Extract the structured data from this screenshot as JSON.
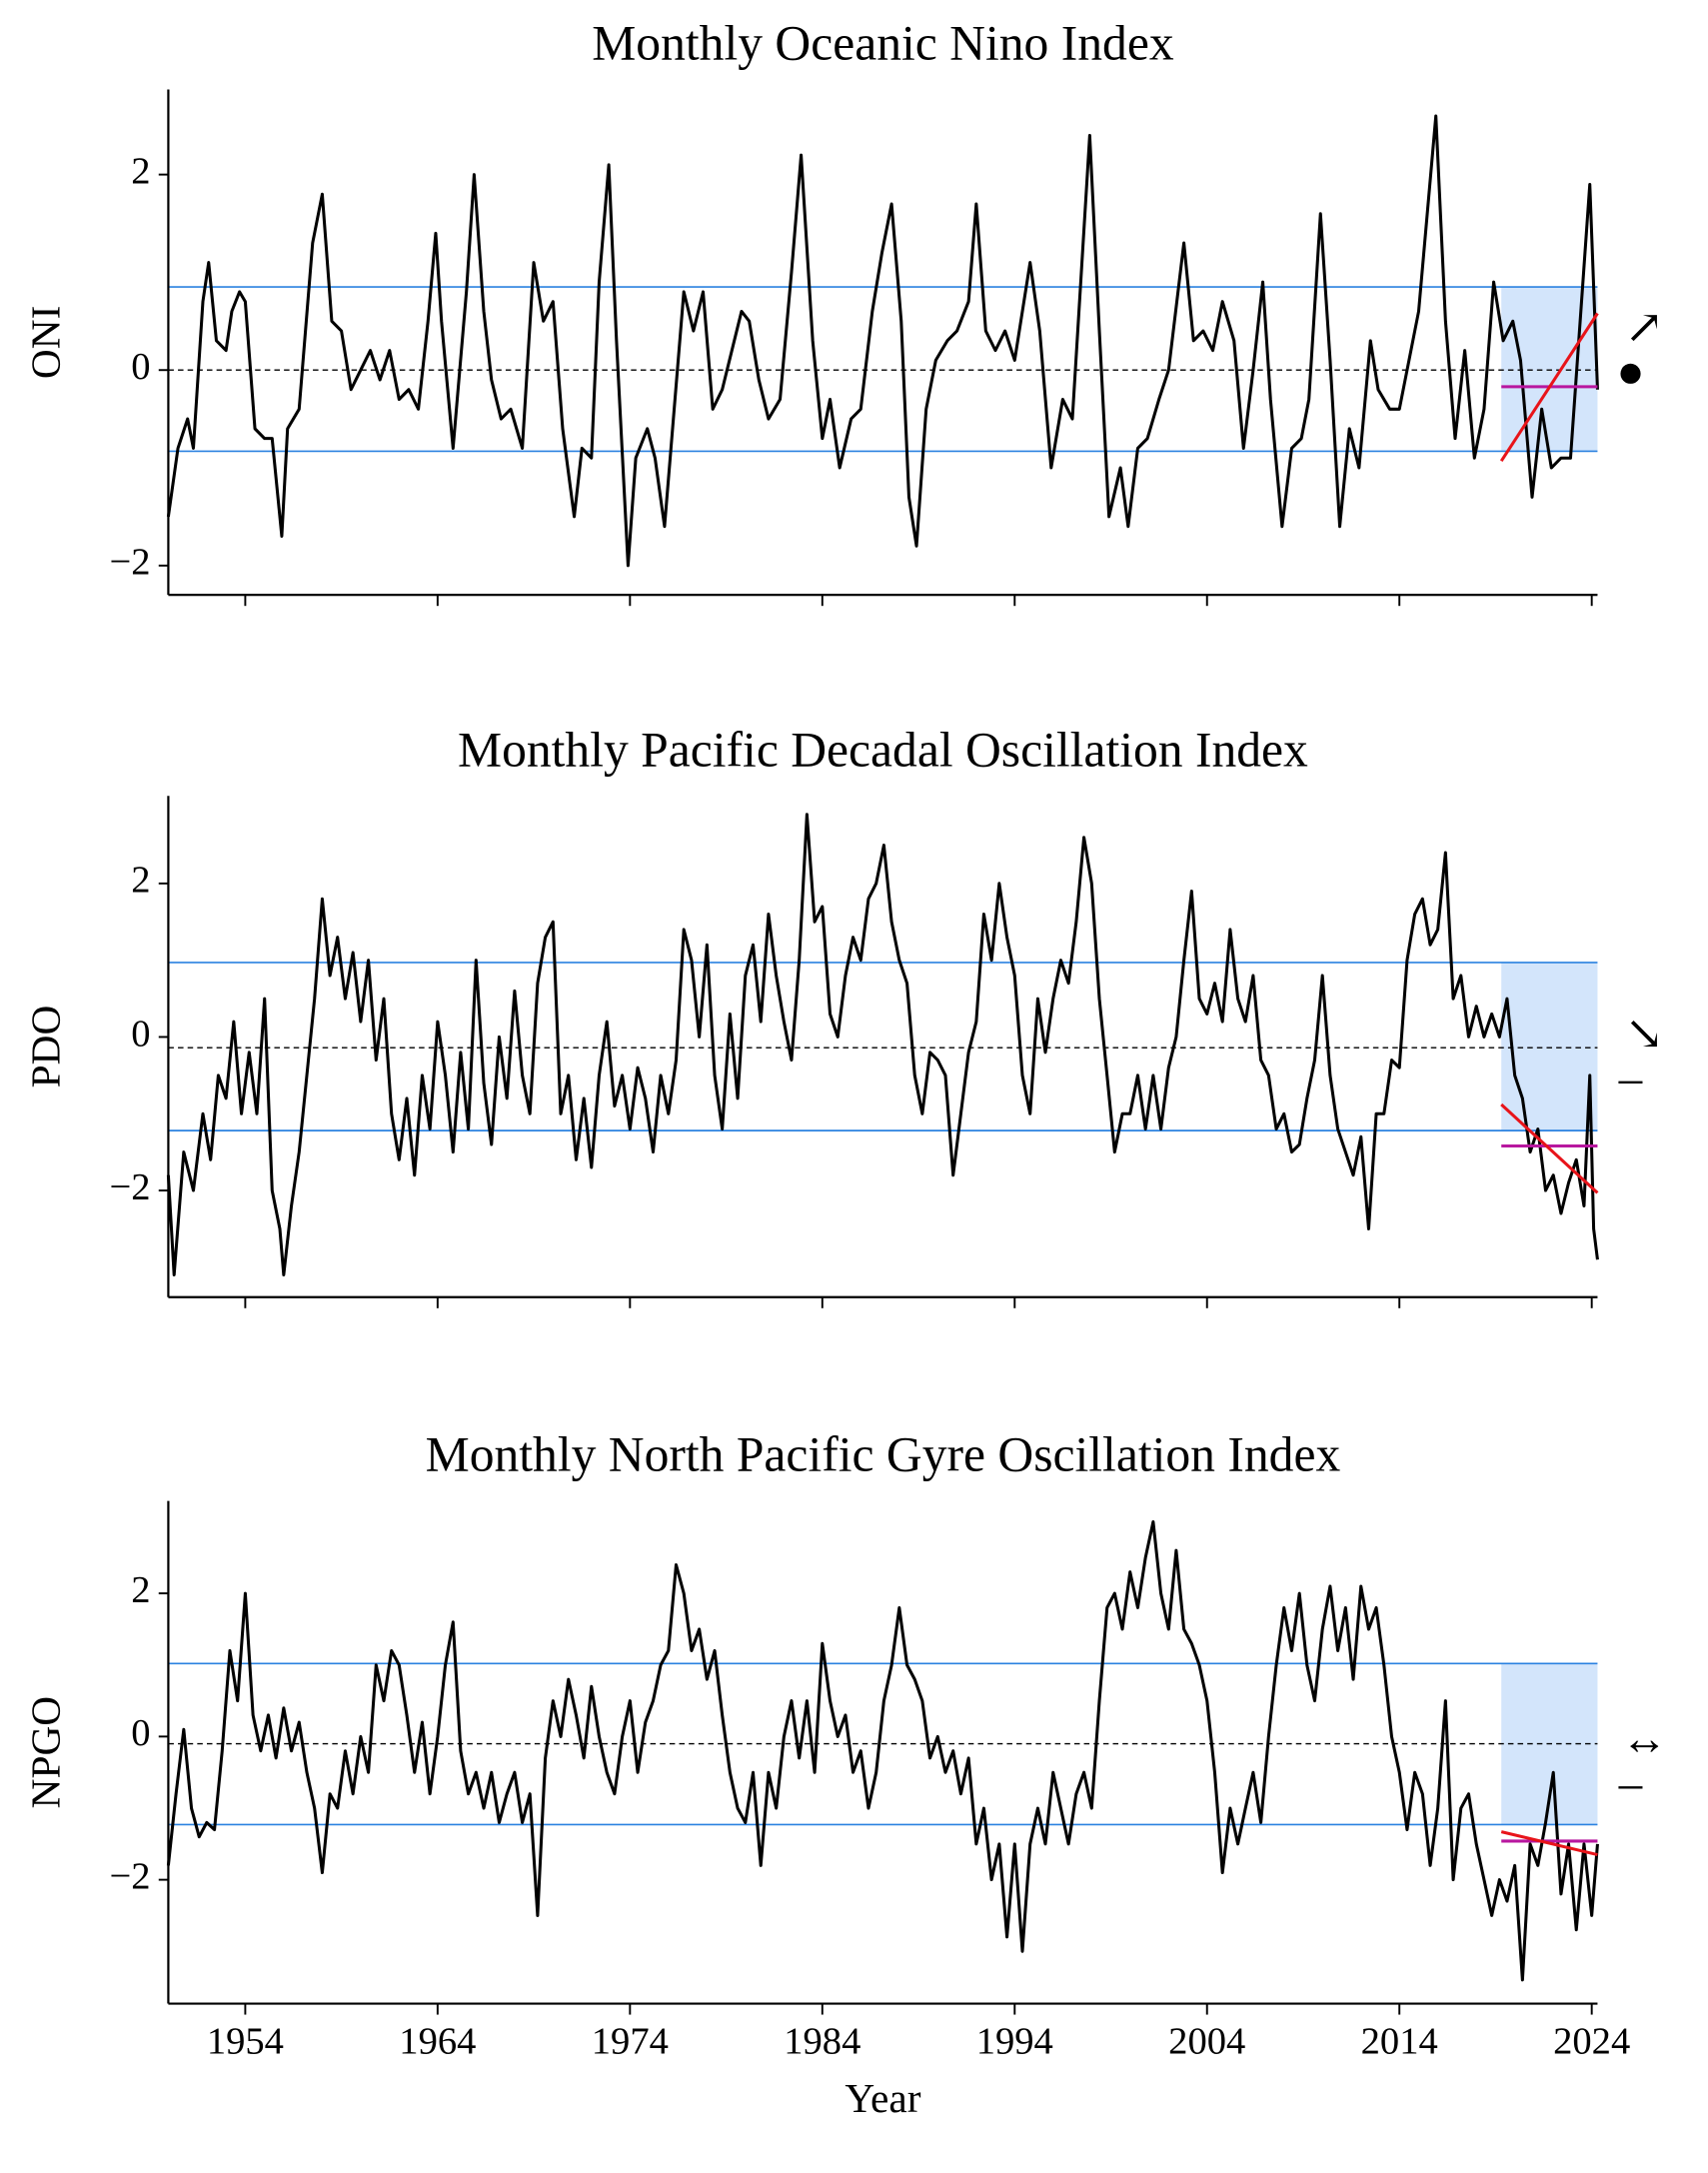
{
  "chart_data": [
    {
      "type": "line",
      "title": "Monthly Oceanic Nino Index",
      "ylabel": "ONI",
      "color": "#000000",
      "x": [
        1950.0,
        1950.5,
        1951.0,
        1951.3,
        1951.8,
        1952.1,
        1952.5,
        1953.0,
        1953.3,
        1953.7,
        1954.0,
        1954.5,
        1955.0,
        1955.4,
        1955.9,
        1956.2,
        1956.8,
        1957.5,
        1958.0,
        1958.5,
        1959.0,
        1959.5,
        1960.0,
        1960.5,
        1961.0,
        1961.5,
        1962.0,
        1962.5,
        1963.0,
        1963.5,
        1963.9,
        1964.2,
        1964.8,
        1965.5,
        1965.9,
        1966.4,
        1966.8,
        1967.3,
        1967.8,
        1968.4,
        1969.0,
        1969.5,
        1970.0,
        1970.5,
        1971.1,
        1971.5,
        1972.0,
        1972.4,
        1972.9,
        1973.3,
        1973.9,
        1974.3,
        1974.9,
        1975.3,
        1975.8,
        1976.3,
        1976.8,
        1977.3,
        1977.8,
        1978.3,
        1978.8,
        1979.3,
        1979.8,
        1980.2,
        1980.7,
        1981.2,
        1981.8,
        1982.4,
        1982.9,
        1983.5,
        1984.0,
        1984.4,
        1984.9,
        1985.5,
        1986.0,
        1986.6,
        1987.1,
        1987.6,
        1988.1,
        1988.5,
        1988.9,
        1989.4,
        1989.9,
        1990.5,
        1991.0,
        1991.6,
        1992.0,
        1992.5,
        1993.0,
        1993.5,
        1994.0,
        1994.8,
        1995.3,
        1995.9,
        1996.5,
        1997.0,
        1997.9,
        1998.4,
        1998.9,
        1999.5,
        1999.9,
        2000.4,
        2000.9,
        2001.5,
        2002.0,
        2002.8,
        2003.3,
        2003.8,
        2004.3,
        2004.8,
        2005.4,
        2005.9,
        2006.4,
        2006.9,
        2007.3,
        2007.9,
        2008.4,
        2008.9,
        2009.3,
        2009.9,
        2010.4,
        2010.9,
        2011.4,
        2011.9,
        2012.5,
        2012.9,
        2013.5,
        2014.0,
        2014.5,
        2015.0,
        2015.9,
        2016.4,
        2016.9,
        2017.4,
        2017.9,
        2018.4,
        2018.9,
        2019.4,
        2019.9,
        2020.3,
        2020.9,
        2021.4,
        2021.9,
        2022.4,
        2022.9,
        2023.4,
        2023.9,
        2024.3
      ],
      "values": [
        -1.5,
        -0.8,
        -0.5,
        -0.8,
        0.7,
        1.1,
        0.3,
        0.2,
        0.6,
        0.8,
        0.7,
        -0.6,
        -0.7,
        -0.7,
        -1.7,
        -0.6,
        -0.4,
        1.3,
        1.8,
        0.5,
        0.4,
        -0.2,
        0.0,
        0.2,
        -0.1,
        0.2,
        -0.3,
        -0.2,
        -0.4,
        0.5,
        1.4,
        0.5,
        -0.8,
        0.8,
        2.0,
        0.6,
        -0.1,
        -0.5,
        -0.4,
        -0.8,
        1.1,
        0.5,
        0.7,
        -0.6,
        -1.5,
        -0.8,
        -0.9,
        0.9,
        2.1,
        0.3,
        -2.0,
        -0.9,
        -0.6,
        -0.9,
        -1.6,
        -0.4,
        0.8,
        0.4,
        0.8,
        -0.4,
        -0.2,
        0.2,
        0.6,
        0.5,
        -0.1,
        -0.5,
        -0.3,
        1.0,
        2.2,
        0.3,
        -0.7,
        -0.3,
        -1.0,
        -0.5,
        -0.4,
        0.6,
        1.2,
        1.7,
        0.5,
        -1.3,
        -1.8,
        -0.4,
        0.1,
        0.3,
        0.4,
        0.7,
        1.7,
        0.4,
        0.2,
        0.4,
        0.1,
        1.1,
        0.4,
        -1.0,
        -0.3,
        -0.5,
        2.4,
        0.4,
        -1.5,
        -1.0,
        -1.6,
        -0.8,
        -0.7,
        -0.3,
        0.0,
        1.3,
        0.3,
        0.4,
        0.2,
        0.7,
        0.3,
        -0.8,
        0.0,
        0.9,
        -0.3,
        -1.6,
        -0.8,
        -0.7,
        -0.3,
        1.6,
        0.1,
        -1.6,
        -0.6,
        -1.0,
        0.3,
        -0.2,
        -0.4,
        -0.4,
        0.1,
        0.6,
        2.6,
        0.5,
        -0.7,
        0.2,
        -0.9,
        -0.4,
        0.9,
        0.3,
        0.5,
        0.1,
        -1.3,
        -0.4,
        -1.0,
        -0.9,
        -0.9,
        0.5,
        1.9,
        -0.2
      ],
      "xlim": [
        1950,
        2024.3
      ],
      "xticks": [
        1954,
        1964,
        1974,
        1984,
        1994,
        2004,
        2014,
        2024
      ],
      "show_xticklabels": false,
      "ylim": [
        -2.3,
        2.87
      ],
      "yticks": [
        {
          "value": -2,
          "label": "−2"
        },
        0,
        2
      ],
      "thresholds": [
        0.85,
        -0.83
      ],
      "mean": 0.0,
      "recent_window": [
        2019.3,
        2024.3
      ],
      "trend": {
        "x": [
          2019.3,
          2024.3
        ],
        "y": [
          -0.93,
          0.58
        ]
      },
      "recent_mean": -0.17,
      "trend_symbol": "↗",
      "state_symbol": "●",
      "threshold_color": "#2b82e0",
      "shade_color": "#d3e5fb",
      "trend_color": "#e8141a",
      "recent_mean_color": "#b8179f"
    },
    {
      "type": "line",
      "title": "Monthly Pacific Decadal Oscillation Index",
      "ylabel": "PDO",
      "color": "#000000",
      "x": [
        1950.0,
        1950.3,
        1950.8,
        1951.3,
        1951.8,
        1952.2,
        1952.6,
        1953.0,
        1953.4,
        1953.8,
        1954.2,
        1954.6,
        1955.0,
        1955.4,
        1955.8,
        1956.0,
        1956.4,
        1956.8,
        1957.2,
        1957.6,
        1958.0,
        1958.4,
        1958.8,
        1959.2,
        1959.6,
        1960.0,
        1960.4,
        1960.8,
        1961.2,
        1961.6,
        1962.0,
        1962.4,
        1962.8,
        1963.2,
        1963.6,
        1964.0,
        1964.4,
        1964.8,
        1965.2,
        1965.6,
        1966.0,
        1966.4,
        1966.8,
        1967.2,
        1967.6,
        1968.0,
        1968.4,
        1968.8,
        1969.2,
        1969.6,
        1970.0,
        1970.4,
        1970.8,
        1971.2,
        1971.6,
        1972.0,
        1972.4,
        1972.8,
        1973.2,
        1973.6,
        1974.0,
        1974.4,
        1974.8,
        1975.2,
        1975.6,
        1976.0,
        1976.4,
        1976.8,
        1977.2,
        1977.6,
        1978.0,
        1978.4,
        1978.8,
        1979.2,
        1979.6,
        1980.0,
        1980.4,
        1980.8,
        1981.2,
        1981.6,
        1982.0,
        1982.4,
        1982.8,
        1983.2,
        1983.6,
        1984.0,
        1984.4,
        1984.8,
        1985.2,
        1985.6,
        1986.0,
        1986.4,
        1986.8,
        1987.2,
        1987.6,
        1988.0,
        1988.4,
        1988.8,
        1989.2,
        1989.6,
        1990.0,
        1990.4,
        1990.8,
        1991.2,
        1991.6,
        1992.0,
        1992.4,
        1992.8,
        1993.2,
        1993.6,
        1994.0,
        1994.4,
        1994.8,
        1995.2,
        1995.6,
        1996.0,
        1996.4,
        1996.8,
        1997.2,
        1997.6,
        1998.0,
        1998.4,
        1998.8,
        1999.2,
        1999.6,
        2000.0,
        2000.4,
        2000.8,
        2001.2,
        2001.6,
        2002.0,
        2002.4,
        2002.8,
        2003.2,
        2003.6,
        2004.0,
        2004.4,
        2004.8,
        2005.2,
        2005.6,
        2006.0,
        2006.4,
        2006.8,
        2007.2,
        2007.6,
        2008.0,
        2008.4,
        2008.8,
        2009.2,
        2009.6,
        2010.0,
        2010.4,
        2010.8,
        2011.2,
        2011.6,
        2012.0,
        2012.4,
        2012.8,
        2013.2,
        2013.6,
        2014.0,
        2014.4,
        2014.8,
        2015.2,
        2015.6,
        2016.0,
        2016.4,
        2016.8,
        2017.2,
        2017.6,
        2018.0,
        2018.4,
        2018.8,
        2019.2,
        2019.6,
        2020.0,
        2020.4,
        2020.8,
        2021.2,
        2021.6,
        2022.0,
        2022.4,
        2022.8,
        2023.2,
        2023.6,
        2023.9,
        2024.1,
        2024.3
      ],
      "values": [
        -1.8,
        -3.1,
        -1.5,
        -2.0,
        -1.0,
        -1.6,
        -0.5,
        -0.8,
        0.2,
        -1.0,
        -0.2,
        -1.0,
        0.5,
        -2.0,
        -2.5,
        -3.1,
        -2.2,
        -1.5,
        -0.5,
        0.5,
        1.8,
        0.8,
        1.3,
        0.5,
        1.1,
        0.2,
        1.0,
        -0.3,
        0.5,
        -1.0,
        -1.6,
        -0.8,
        -1.8,
        -0.5,
        -1.2,
        0.2,
        -0.5,
        -1.5,
        -0.2,
        -1.2,
        1.0,
        -0.6,
        -1.4,
        0.0,
        -0.8,
        0.6,
        -0.5,
        -1.0,
        0.7,
        1.3,
        1.5,
        -1.0,
        -0.5,
        -1.6,
        -0.8,
        -1.7,
        -0.5,
        0.2,
        -0.9,
        -0.5,
        -1.2,
        -0.4,
        -0.8,
        -1.5,
        -0.5,
        -1.0,
        -0.3,
        1.4,
        1.0,
        0.0,
        1.2,
        -0.5,
        -1.2,
        0.3,
        -0.8,
        0.8,
        1.2,
        0.2,
        1.6,
        0.8,
        0.2,
        -0.3,
        1.0,
        2.9,
        1.5,
        1.7,
        0.3,
        0.0,
        0.8,
        1.3,
        1.0,
        1.8,
        2.0,
        2.5,
        1.5,
        1.0,
        0.7,
        -0.5,
        -1.0,
        -0.2,
        -0.3,
        -0.5,
        -1.8,
        -1.0,
        -0.2,
        0.2,
        1.6,
        1.0,
        2.0,
        1.3,
        0.8,
        -0.5,
        -1.0,
        0.5,
        -0.2,
        0.5,
        1.0,
        0.7,
        1.5,
        2.6,
        2.0,
        0.5,
        -0.5,
        -1.5,
        -1.0,
        -1.0,
        -0.5,
        -1.2,
        -0.5,
        -1.2,
        -0.4,
        0.0,
        1.0,
        1.9,
        0.5,
        0.3,
        0.7,
        0.2,
        1.4,
        0.5,
        0.2,
        0.8,
        -0.3,
        -0.5,
        -1.2,
        -1.0,
        -1.5,
        -1.4,
        -0.8,
        -0.3,
        0.8,
        -0.5,
        -1.2,
        -1.5,
        -1.8,
        -1.3,
        -2.5,
        -1.0,
        -1.0,
        -0.3,
        -0.4,
        1.0,
        1.6,
        1.8,
        1.2,
        1.4,
        2.4,
        0.5,
        0.8,
        0.0,
        0.4,
        0.0,
        0.3,
        0.0,
        0.5,
        -0.5,
        -0.8,
        -1.5,
        -1.2,
        -2.0,
        -1.8,
        -2.3,
        -1.9,
        -1.6,
        -2.2,
        -0.5,
        -2.5,
        -2.9
      ],
      "xlim": [
        1950,
        2024.3
      ],
      "xticks": [
        1954,
        1964,
        1974,
        1984,
        1994,
        2004,
        2014,
        2024
      ],
      "show_xticklabels": false,
      "ylim": [
        -3.39,
        3.14
      ],
      "yticks": [
        {
          "value": -2,
          "label": "−2"
        },
        0,
        2
      ],
      "thresholds": [
        0.97,
        -1.22
      ],
      "mean": -0.14,
      "recent_window": [
        2019.3,
        2024.3
      ],
      "trend": {
        "x": [
          2019.3,
          2024.3
        ],
        "y": [
          -0.88,
          -2.03
        ]
      },
      "recent_mean": -1.42,
      "trend_symbol": "↘",
      "state_symbol": "–",
      "threshold_color": "#2b82e0",
      "shade_color": "#d3e5fb",
      "trend_color": "#e8141a",
      "recent_mean_color": "#b8179f"
    },
    {
      "type": "line",
      "title": "Monthly North Pacific Gyre Oscillation Index",
      "ylabel": "NPGO",
      "xlabel": "Year",
      "color": "#000000",
      "x": [
        1950.0,
        1950.4,
        1950.8,
        1951.2,
        1951.6,
        1952.0,
        1952.4,
        1952.8,
        1953.2,
        1953.6,
        1954.0,
        1954.4,
        1954.8,
        1955.2,
        1955.6,
        1956.0,
        1956.4,
        1956.8,
        1957.2,
        1957.6,
        1958.0,
        1958.4,
        1958.8,
        1959.2,
        1959.6,
        1960.0,
        1960.4,
        1960.8,
        1961.2,
        1961.6,
        1962.0,
        1962.4,
        1962.8,
        1963.2,
        1963.6,
        1964.0,
        1964.4,
        1964.8,
        1965.2,
        1965.6,
        1966.0,
        1966.4,
        1966.8,
        1967.2,
        1967.6,
        1968.0,
        1968.4,
        1968.8,
        1969.2,
        1969.6,
        1970.0,
        1970.4,
        1970.8,
        1971.2,
        1971.6,
        1972.0,
        1972.4,
        1972.8,
        1973.2,
        1973.6,
        1974.0,
        1974.4,
        1974.8,
        1975.2,
        1975.6,
        1976.0,
        1976.4,
        1976.8,
        1977.2,
        1977.6,
        1978.0,
        1978.4,
        1978.8,
        1979.2,
        1979.6,
        1980.0,
        1980.4,
        1980.8,
        1981.2,
        1981.6,
        1982.0,
        1982.4,
        1982.8,
        1983.2,
        1983.6,
        1984.0,
        1984.4,
        1984.8,
        1985.2,
        1985.6,
        1986.0,
        1986.4,
        1986.8,
        1987.2,
        1987.6,
        1988.0,
        1988.4,
        1988.8,
        1989.2,
        1989.6,
        1990.0,
        1990.4,
        1990.8,
        1991.2,
        1991.6,
        1992.0,
        1992.4,
        1992.8,
        1993.2,
        1993.6,
        1994.0,
        1994.4,
        1994.8,
        1995.2,
        1995.6,
        1996.0,
        1996.4,
        1996.8,
        1997.2,
        1997.6,
        1998.0,
        1998.4,
        1998.8,
        1999.2,
        1999.6,
        2000.0,
        2000.4,
        2000.8,
        2001.2,
        2001.6,
        2002.0,
        2002.4,
        2002.8,
        2003.2,
        2003.6,
        2004.0,
        2004.4,
        2004.8,
        2005.2,
        2005.6,
        2006.0,
        2006.4,
        2006.8,
        2007.2,
        2007.6,
        2008.0,
        2008.4,
        2008.8,
        2009.2,
        2009.6,
        2010.0,
        2010.4,
        2010.8,
        2011.2,
        2011.6,
        2012.0,
        2012.4,
        2012.8,
        2013.2,
        2013.6,
        2014.0,
        2014.4,
        2014.8,
        2015.2,
        2015.6,
        2016.0,
        2016.4,
        2016.8,
        2017.2,
        2017.6,
        2018.0,
        2018.4,
        2018.8,
        2019.2,
        2019.6,
        2020.0,
        2020.4,
        2020.8,
        2021.2,
        2021.6,
        2022.0,
        2022.4,
        2022.8,
        2023.2,
        2023.6,
        2024.0,
        2024.3
      ],
      "values": [
        -1.8,
        -0.8,
        0.1,
        -1.0,
        -1.4,
        -1.2,
        -1.3,
        -0.2,
        1.2,
        0.5,
        2.0,
        0.3,
        -0.2,
        0.3,
        -0.3,
        0.4,
        -0.2,
        0.2,
        -0.5,
        -1.0,
        -1.9,
        -0.8,
        -1.0,
        -0.2,
        -0.8,
        0.0,
        -0.5,
        1.0,
        0.5,
        1.2,
        1.0,
        0.3,
        -0.5,
        0.2,
        -0.8,
        0.0,
        1.0,
        1.6,
        -0.2,
        -0.8,
        -0.5,
        -1.0,
        -0.5,
        -1.2,
        -0.8,
        -0.5,
        -1.2,
        -0.8,
        -2.5,
        -0.3,
        0.5,
        0.0,
        0.8,
        0.3,
        -0.3,
        0.7,
        0.0,
        -0.5,
        -0.8,
        0.0,
        0.5,
        -0.5,
        0.2,
        0.5,
        1.0,
        1.2,
        2.4,
        2.0,
        1.2,
        1.5,
        0.8,
        1.2,
        0.3,
        -0.5,
        -1.0,
        -1.2,
        -0.5,
        -1.8,
        -0.5,
        -1.0,
        0.0,
        0.5,
        -0.3,
        0.5,
        -0.5,
        1.3,
        0.5,
        0.0,
        0.3,
        -0.5,
        -0.2,
        -1.0,
        -0.5,
        0.5,
        1.0,
        1.8,
        1.0,
        0.8,
        0.5,
        -0.3,
        0.0,
        -0.5,
        -0.2,
        -0.8,
        -0.3,
        -1.5,
        -1.0,
        -2.0,
        -1.5,
        -2.8,
        -1.5,
        -3.0,
        -1.5,
        -1.0,
        -1.5,
        -0.5,
        -1.0,
        -1.5,
        -0.8,
        -0.5,
        -1.0,
        0.5,
        1.8,
        2.0,
        1.5,
        2.3,
        1.8,
        2.5,
        3.0,
        2.0,
        1.5,
        2.6,
        1.5,
        1.3,
        1.0,
        0.5,
        -0.5,
        -1.9,
        -1.0,
        -1.5,
        -1.0,
        -0.5,
        -1.2,
        0.0,
        1.0,
        1.8,
        1.2,
        2.0,
        1.0,
        0.5,
        1.5,
        2.1,
        1.2,
        1.8,
        0.8,
        2.1,
        1.5,
        1.8,
        1.0,
        0.0,
        -0.5,
        -1.3,
        -0.5,
        -0.8,
        -1.8,
        -1.0,
        0.5,
        -2.0,
        -1.0,
        -0.8,
        -1.5,
        -2.0,
        -2.5,
        -2.0,
        -2.3,
        -1.8,
        -3.4,
        -1.5,
        -1.8,
        -1.2,
        -0.5,
        -2.2,
        -1.5,
        -2.7,
        -1.5,
        -2.5,
        -1.5
      ],
      "xlim": [
        1950,
        2024.3
      ],
      "xticks": [
        1954,
        1964,
        1974,
        1984,
        1994,
        2004,
        2014,
        2024
      ],
      "show_xticklabels": true,
      "ylim": [
        -3.73,
        3.29
      ],
      "yticks": [
        {
          "value": -2,
          "label": "−2"
        },
        0,
        2
      ],
      "thresholds": [
        1.02,
        -1.23
      ],
      "mean": -0.1,
      "recent_window": [
        2019.3,
        2024.3
      ],
      "trend": {
        "x": [
          2019.3,
          2024.3
        ],
        "y": [
          -1.33,
          -1.65
        ]
      },
      "recent_mean": -1.46,
      "trend_symbol": "↔",
      "state_symbol": "–",
      "threshold_color": "#2b82e0",
      "shade_color": "#d3e5fb",
      "trend_color": "#e8141a",
      "recent_mean_color": "#b8179f"
    }
  ]
}
